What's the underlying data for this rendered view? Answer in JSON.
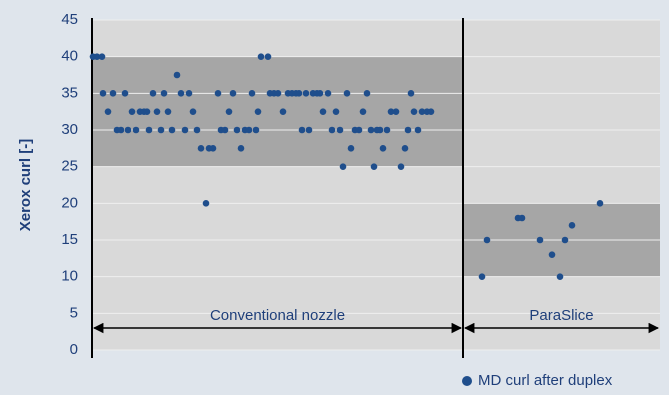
{
  "chart_data": {
    "type": "scatter",
    "y_label": "Xerox curl [-]",
    "ylim": [
      0,
      45
    ],
    "yticks": [
      0,
      5,
      10,
      15,
      20,
      25,
      30,
      35,
      40,
      45
    ],
    "xlim": [
      0,
      568
    ],
    "grid": true,
    "legend": "bottom-right",
    "regions": [
      {
        "label": "Conventional nozzle",
        "x": [
          0,
          371
        ],
        "band": [
          25,
          40
        ]
      },
      {
        "label": "ParaSlice",
        "x": [
          371,
          568
        ],
        "band": [
          10,
          20
        ]
      }
    ],
    "series": [
      {
        "name": "MD curl after duplex",
        "color": "#1f4e8c",
        "x": [
          1,
          5,
          10,
          11,
          16,
          21,
          25,
          29,
          33,
          36,
          40,
          44,
          48,
          52,
          55,
          57,
          61,
          65,
          69,
          72,
          76,
          80,
          85,
          89,
          93,
          97,
          101,
          105,
          109,
          114,
          117,
          121,
          126,
          129,
          133,
          137,
          141,
          145,
          149,
          153,
          157,
          160,
          164,
          166,
          169,
          176,
          178,
          182,
          186,
          191,
          196,
          200,
          204,
          207,
          210,
          214,
          217,
          221,
          225,
          228,
          231,
          236,
          240,
          244,
          248,
          251,
          255,
          259,
          263,
          267,
          271,
          275,
          279,
          282,
          285,
          288,
          291,
          295,
          299,
          304,
          309,
          313,
          316,
          319,
          322,
          326,
          330,
          335,
          339,
          390,
          395,
          426,
          430,
          448,
          460,
          468,
          473,
          480,
          508
        ],
        "values": [
          40,
          40,
          40,
          35,
          32.5,
          35,
          30,
          30,
          35,
          30,
          32.5,
          30,
          32.5,
          32.5,
          32.5,
          30,
          35,
          32.5,
          30,
          35,
          32.5,
          30,
          37.5,
          35,
          30,
          35,
          32.5,
          30,
          27.5,
          20,
          27.5,
          27.5,
          35,
          30,
          30,
          32.5,
          35,
          30,
          27.5,
          30,
          30,
          35,
          30,
          32.5,
          40,
          40,
          35,
          35,
          35,
          32.5,
          35,
          35,
          35,
          35,
          30,
          35,
          30,
          35,
          35,
          35,
          32.5,
          35,
          30,
          32.5,
          30,
          25,
          35,
          27.5,
          30,
          30,
          32.5,
          35,
          30,
          25,
          30,
          30,
          27.5,
          30,
          32.5,
          32.5,
          25,
          27.5,
          30,
          35,
          32.5,
          30,
          32.5,
          32.5,
          32.5,
          10,
          15,
          18,
          18,
          15,
          13,
          10,
          15,
          17,
          20
        ]
      }
    ]
  }
}
